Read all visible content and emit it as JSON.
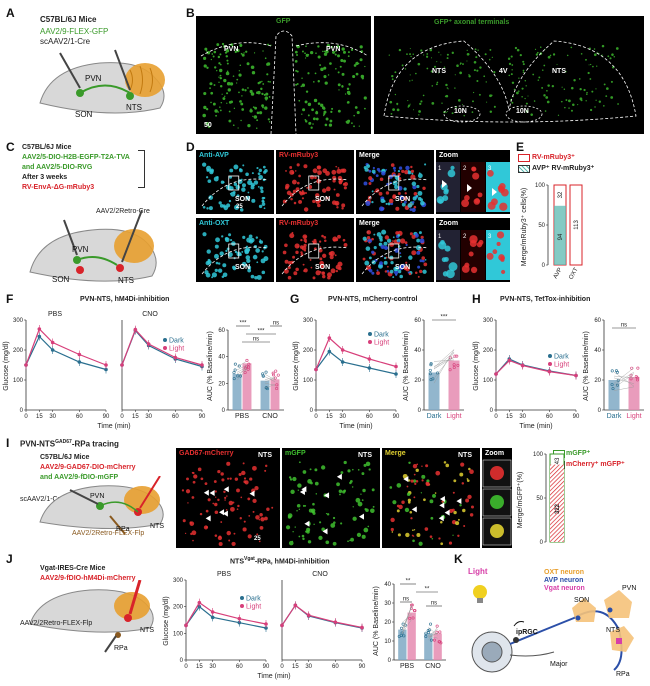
{
  "panels": {
    "A": {
      "label": "A",
      "mouse": "C57BL/6J Mice",
      "virus1": "AAV2/9-FLEX-GFP",
      "virus2": "scAAV2/1-Cre",
      "regions": [
        "PVN",
        "NTS",
        "SON"
      ],
      "colors": {
        "green": "#3a9a2a",
        "orange": "#e8a030"
      }
    },
    "B": {
      "label": "B",
      "left_title": "GFP",
      "right_title": "GFP⁺ axonal terminals",
      "left_regions": [
        "PVN",
        "PVN"
      ],
      "right_regions": [
        "NTS",
        "4V",
        "NTS",
        "10N",
        "10N"
      ],
      "scale": "50"
    },
    "C": {
      "label": "C",
      "mouse": "C57BL/6J Mice",
      "virus1": "AAV2/5-DIO-H2B-EGFP-T2A-TVA",
      "virus2": "and AAV2/5-DIO-RVG",
      "wait": "After 3 weeks",
      "virus3": "RV-EnvA-ΔG-mRuby3",
      "virus4": "AAV2/2Retro-Cre",
      "regions": [
        "PVN",
        "NTS",
        "SON"
      ]
    },
    "D": {
      "label": "D",
      "row1_titles": [
        "Anti-AVP",
        "RV-mRuby3",
        "Merge",
        "Zoom"
      ],
      "row2_titles": [
        "Anti-OXT",
        "RV-mRuby3",
        "Merge",
        "Zoom"
      ],
      "region": "SON",
      "scale": "25",
      "zoom_nums": [
        "1",
        "2",
        "3"
      ]
    },
    "E": {
      "label": "E",
      "legend1": "RV-mRuby3⁺",
      "legend2": "AVP⁺ RV-mRuby3⁺",
      "ylabel": "Merge/mRuby3⁺ cells(%)",
      "yticks": [
        "0",
        "50",
        "100"
      ],
      "categories": [
        "AVP",
        "OXT"
      ],
      "n_top": [
        "32",
        "113"
      ],
      "n_inner": "94"
    },
    "F": {
      "label": "F",
      "title": "PVN-NTS, hM4Di-inhibition",
      "sub1": "PBS",
      "sub2": "CNO",
      "ylabel": "Glucose (mg/dl)",
      "xlabel": "Time (min)",
      "legend": [
        "Dark",
        "Light"
      ],
      "auc_ylabel": "AUC (% Baseline/min)",
      "auc_cats": [
        "PBS",
        "CNO"
      ],
      "sig": [
        "***",
        "ns",
        "ns",
        "***"
      ]
    },
    "G": {
      "label": "G",
      "title": "PVN-NTS, mCherry-control",
      "ylabel": "Glucose (mg/dl)",
      "xlabel": "Time (min)",
      "legend": [
        "Dark",
        "Light"
      ],
      "auc_ylabel": "AUC (% Baseline/min)",
      "auc_cats": [
        "Dark",
        "Light"
      ],
      "sig": "***"
    },
    "H": {
      "label": "H",
      "title": "PVN-NTS, TetTox-inhibition",
      "ylabel": "Glucose (mg/dl)",
      "xlabel": "Time (min)",
      "legend": [
        "Dark",
        "Light"
      ],
      "auc_ylabel": "AUC (% Baseline/min)",
      "auc_cats": [
        "Dark",
        "Light"
      ],
      "sig": "ns"
    },
    "I": {
      "label": "I",
      "title": "PVN-NTS",
      "title_sup": "GAD67",
      "title_end": "-RPa tracing",
      "mouse": "C57BL/6J Mice",
      "virus1": "AAV2/9-GAD67-DIO-mCherry",
      "virus2": "and AAV2/9-fDIO-mGFP",
      "virus3": "scAAV2/1-Cre",
      "virus4": "AAV2/2Retro-FLEX-Flp",
      "regions": [
        "PVN",
        "NTS",
        "RPa"
      ],
      "img_titles": [
        "GAD67-mCherry",
        "mGFP",
        "Merge",
        "Zoom"
      ],
      "img_region": "NTS",
      "scale": "25",
      "legend": [
        "mGFP⁺",
        "mCherry⁺ mGFP⁺"
      ],
      "ylabel": "Merge/mGFP⁺(%)",
      "yticks": [
        "0",
        "50",
        "100"
      ],
      "n_top": "43",
      "n_inner": "322"
    },
    "J": {
      "label": "J",
      "mouse": "Vgat-IRES-Cre Mice",
      "virus1": "AAV2/9-fDIO-hM4Di-mCherry",
      "virus2": "AAV2/2Retro-FLEX-Flp",
      "regions": [
        "NTS",
        "RPa"
      ],
      "title": "NTS",
      "title_sup": "Vgat",
      "title_end": "-RPa, hM4Di-inhibition",
      "sub1": "PBS",
      "sub2": "CNO",
      "ylabel": "Glucose (mg/dl)",
      "xlabel": "Time (min)",
      "legend": [
        "Dark",
        "Light"
      ],
      "auc_ylabel": "AUC (% Baseline/min)",
      "auc_cats": [
        "PBS",
        "CNO"
      ],
      "sig": [
        "**",
        "**",
        "ns",
        "ns"
      ]
    },
    "K": {
      "label": "K",
      "light": "Light",
      "legend": [
        "OXT neuron",
        "AVP neuron",
        "Vgat neuron"
      ],
      "legend_colors": [
        "#e8a030",
        "#2b4fa8",
        "#d73fa8"
      ],
      "regions": [
        "PVN",
        "SON",
        "NTS",
        "RPa",
        "ipRGC",
        "Major"
      ]
    }
  },
  "chart_data": [
    {
      "type": "line",
      "panel": "F-PBS",
      "x": [
        0,
        15,
        30,
        60,
        90
      ],
      "series": [
        {
          "name": "Dark",
          "values": [
            150,
            245,
            200,
            160,
            135
          ]
        },
        {
          "name": "Light",
          "values": [
            150,
            270,
            225,
            185,
            150
          ]
        }
      ],
      "xlabel": "Time (min)",
      "ylabel": "Glucose (mg/dl)",
      "ylim": [
        0,
        300
      ],
      "yticks": [
        0,
        100,
        200,
        300
      ],
      "xticks": [
        0,
        15,
        30,
        60,
        90
      ]
    },
    {
      "type": "line",
      "panel": "F-CNO",
      "x": [
        0,
        15,
        30,
        60,
        90
      ],
      "series": [
        {
          "name": "Dark",
          "values": [
            150,
            265,
            215,
            170,
            145
          ]
        },
        {
          "name": "Light",
          "values": [
            150,
            268,
            220,
            175,
            150
          ]
        }
      ],
      "xlabel": "Time (min)",
      "ylim": [
        0,
        300
      ],
      "xticks": [
        0,
        15,
        30,
        60,
        90
      ]
    },
    {
      "type": "bar",
      "panel": "F-AUC",
      "categories": [
        "PBS",
        "CNO"
      ],
      "series": [
        {
          "name": "Dark",
          "values": [
            27,
            22
          ]
        },
        {
          "name": "Light",
          "values": [
            35,
            23
          ]
        }
      ],
      "ylim": [
        0,
        60
      ],
      "yticks": [
        0,
        20,
        40,
        60
      ]
    },
    {
      "type": "line",
      "panel": "G",
      "x": [
        0,
        15,
        30,
        60,
        90
      ],
      "series": [
        {
          "name": "Dark",
          "values": [
            135,
            195,
            160,
            140,
            120
          ]
        },
        {
          "name": "Light",
          "values": [
            135,
            240,
            200,
            170,
            145
          ]
        }
      ],
      "xlabel": "Time (min)",
      "ylabel": "Glucose (mg/dl)",
      "ylim": [
        0,
        300
      ],
      "yticks": [
        0,
        100,
        200,
        300
      ],
      "xticks": [
        0,
        15,
        30,
        60,
        90
      ]
    },
    {
      "type": "bar",
      "panel": "G-AUC",
      "categories": [
        "Dark",
        "Light"
      ],
      "values": [
        25,
        33
      ],
      "ylim": [
        0,
        60
      ],
      "yticks": [
        0,
        20,
        40,
        60
      ]
    },
    {
      "type": "line",
      "panel": "H",
      "x": [
        0,
        15,
        30,
        60,
        90
      ],
      "series": [
        {
          "name": "Dark",
          "values": [
            120,
            170,
            150,
            130,
            115
          ]
        },
        {
          "name": "Light",
          "values": [
            120,
            165,
            148,
            128,
            115
          ]
        }
      ],
      "xlabel": "Time (min)",
      "ylabel": "Glucose (mg/dl)",
      "ylim": [
        0,
        300
      ],
      "yticks": [
        0,
        100,
        200,
        300
      ],
      "xticks": [
        0,
        15,
        30,
        60,
        90
      ]
    },
    {
      "type": "bar",
      "panel": "H-AUC",
      "categories": [
        "Dark",
        "Light"
      ],
      "values": [
        20,
        22
      ],
      "ylim": [
        0,
        60
      ],
      "yticks": [
        0,
        20,
        40,
        60
      ]
    },
    {
      "type": "line",
      "panel": "J-PBS",
      "x": [
        0,
        15,
        30,
        60,
        90
      ],
      "series": [
        {
          "name": "Dark",
          "values": [
            130,
            200,
            160,
            140,
            120
          ]
        },
        {
          "name": "Light",
          "values": [
            130,
            215,
            180,
            155,
            135
          ]
        }
      ],
      "xlabel": "Time (min)",
      "ylabel": "Glucose (mg/dl)",
      "ylim": [
        0,
        300
      ],
      "yticks": [
        0,
        100,
        200,
        300
      ],
      "xticks": [
        0,
        15,
        30,
        60,
        90
      ]
    },
    {
      "type": "line",
      "panel": "J-CNO",
      "x": [
        0,
        15,
        30,
        60,
        90
      ],
      "series": [
        {
          "name": "Dark",
          "values": [
            130,
            205,
            165,
            140,
            120
          ]
        },
        {
          "name": "Light",
          "values": [
            130,
            205,
            168,
            142,
            122
          ]
        }
      ],
      "xlabel": "Time (min)",
      "ylim": [
        0,
        300
      ],
      "xticks": [
        0,
        15,
        30,
        60,
        90
      ]
    },
    {
      "type": "bar",
      "panel": "J-AUC",
      "categories": [
        "PBS",
        "CNO"
      ],
      "series": [
        {
          "name": "Dark",
          "values": [
            16,
            14
          ]
        },
        {
          "name": "Light",
          "values": [
            25,
            14
          ]
        }
      ],
      "ylim": [
        0,
        40
      ],
      "yticks": [
        0,
        10,
        20,
        30,
        40
      ]
    }
  ]
}
